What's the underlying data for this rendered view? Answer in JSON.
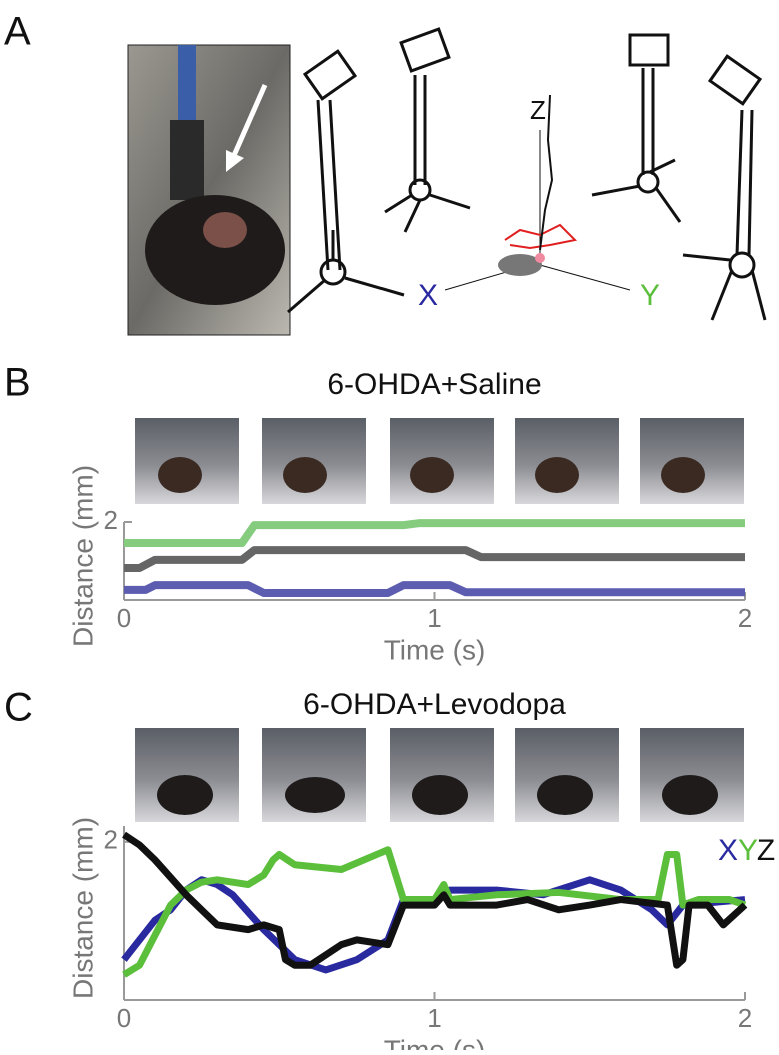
{
  "panels": [
    "A",
    "B",
    "C"
  ],
  "axis_letters": [
    "X",
    "Y",
    "Z"
  ],
  "chart_data": [
    {
      "type": "line",
      "title": "6-OHDA+Saline",
      "x_label": "Time (s)",
      "y_label": "Distance (mm)",
      "xlim": [
        0,
        2
      ],
      "xticks": [
        0,
        1,
        2
      ],
      "ylim": [
        0,
        2
      ],
      "yticks": [
        2
      ],
      "legend": false,
      "series": [
        {
          "color": "#86cc7e",
          "x": [
            0,
            0.38,
            0.42,
            0.9,
            0.95,
            2
          ],
          "values": [
            1.46,
            1.46,
            1.92,
            1.92,
            1.97,
            1.97
          ]
        },
        {
          "color": "#666666",
          "x": [
            0,
            0.05,
            0.1,
            0.38,
            0.42,
            1.1,
            1.15,
            2
          ],
          "values": [
            0.82,
            0.82,
            1.03,
            1.03,
            1.28,
            1.28,
            1.1,
            1.1
          ]
        },
        {
          "color": "#5c5cb0",
          "x": [
            0,
            0.07,
            0.1,
            0.4,
            0.45,
            0.85,
            0.9,
            1.05,
            1.1,
            2
          ],
          "values": [
            0.26,
            0.26,
            0.38,
            0.38,
            0.18,
            0.18,
            0.38,
            0.38,
            0.2,
            0.2
          ]
        }
      ]
    },
    {
      "type": "line",
      "title": "6-OHDA+Levodopa",
      "x_label": "Time (s)",
      "y_label": "Distance (mm)",
      "xlim": [
        0,
        2
      ],
      "xticks": [
        0,
        1,
        2
      ],
      "ylim": [
        0,
        2.2
      ],
      "yticks": [
        2
      ],
      "legend": "top-right",
      "series": [
        {
          "name": "X",
          "color": "#2a2aa0",
          "x": [
            0,
            0.05,
            0.1,
            0.15,
            0.2,
            0.25,
            0.3,
            0.35,
            0.45,
            0.55,
            0.65,
            0.75,
            0.85,
            0.9,
            1.0,
            1.05,
            1.2,
            1.35,
            1.5,
            1.6,
            1.7,
            1.75,
            1.8,
            2.0
          ],
          "values": [
            0.51,
            0.76,
            1.01,
            1.14,
            1.39,
            1.52,
            1.46,
            1.33,
            0.89,
            0.51,
            0.38,
            0.51,
            0.76,
            1.27,
            1.27,
            1.39,
            1.39,
            1.33,
            1.52,
            1.39,
            1.14,
            0.95,
            1.2,
            1.27
          ]
        },
        {
          "name": "Y",
          "color": "#5cbf3c",
          "x": [
            0,
            0.05,
            0.1,
            0.15,
            0.2,
            0.25,
            0.3,
            0.4,
            0.45,
            0.48,
            0.5,
            0.55,
            0.7,
            0.85,
            0.9,
            1.0,
            1.03,
            1.05,
            1.2,
            1.4,
            1.6,
            1.72,
            1.75,
            1.78,
            1.8,
            1.85,
            1.95,
            2.0
          ],
          "values": [
            0.32,
            0.44,
            0.82,
            1.2,
            1.39,
            1.49,
            1.52,
            1.46,
            1.58,
            1.77,
            1.84,
            1.71,
            1.65,
            1.9,
            1.27,
            1.27,
            1.46,
            1.27,
            1.33,
            1.36,
            1.27,
            1.27,
            1.84,
            1.84,
            1.2,
            1.27,
            1.27,
            1.2
          ]
        },
        {
          "name": "Z",
          "color": "#111111",
          "x": [
            0,
            0.05,
            0.1,
            0.2,
            0.25,
            0.3,
            0.4,
            0.45,
            0.5,
            0.52,
            0.55,
            0.6,
            0.7,
            0.75,
            0.85,
            0.9,
            1.0,
            1.03,
            1.05,
            1.2,
            1.3,
            1.4,
            1.5,
            1.6,
            1.75,
            1.78,
            1.8,
            1.82,
            1.88,
            1.93,
            2.0
          ],
          "values": [
            2.09,
            1.96,
            1.77,
            1.33,
            1.14,
            0.95,
            0.89,
            0.95,
            0.89,
            0.51,
            0.44,
            0.44,
            0.7,
            0.76,
            0.7,
            1.2,
            1.2,
            1.33,
            1.2,
            1.2,
            1.27,
            1.14,
            1.2,
            1.27,
            1.2,
            0.44,
            0.51,
            1.2,
            1.2,
            0.95,
            1.2
          ]
        }
      ]
    }
  ]
}
